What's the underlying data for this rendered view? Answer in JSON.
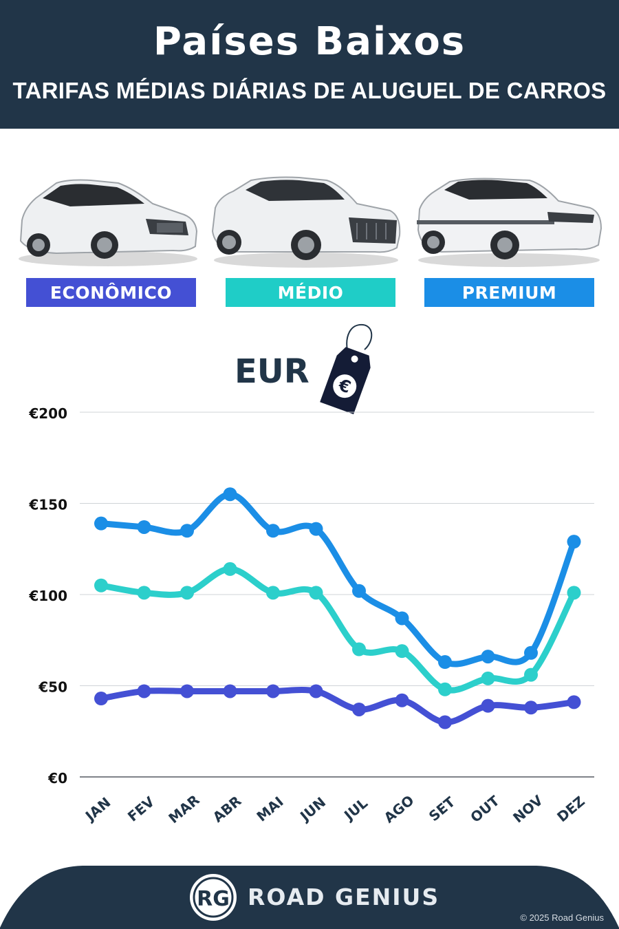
{
  "header": {
    "title": "Países Baixos",
    "subtitle": "TARIFAS MÉDIAS DIÁRIAS DE ALUGUEL DE CARROS"
  },
  "categories": [
    {
      "label": "ECONÔMICO",
      "color": "#4450d4"
    },
    {
      "label": "MÉDIO",
      "color": "#1fcdc7"
    },
    {
      "label": "PREMIUM",
      "color": "#1b8ee6"
    }
  ],
  "currency_label": "EUR",
  "tag_symbol": "€",
  "chart_data": {
    "type": "line",
    "categories": [
      "JAN",
      "FEV",
      "MAR",
      "ABR",
      "MAI",
      "JUN",
      "JUL",
      "AGO",
      "SET",
      "OUT",
      "NOV",
      "DEZ"
    ],
    "y_ticks": [
      "€0",
      "€50",
      "€100",
      "€150",
      "€200"
    ],
    "ylim": [
      0,
      200
    ],
    "grid": true,
    "series": [
      {
        "name": "PREMIUM",
        "color": "#1b8ee6",
        "values": [
          139,
          137,
          135,
          155,
          135,
          136,
          102,
          87,
          63,
          66,
          68,
          129
        ]
      },
      {
        "name": "MÉDIO",
        "color": "#2ccfcb",
        "values": [
          105,
          101,
          101,
          114,
          101,
          101,
          70,
          69,
          48,
          54,
          56,
          101
        ]
      },
      {
        "name": "ECONÔMICO",
        "color": "#4450d4",
        "values": [
          43,
          47,
          47,
          47,
          47,
          47,
          37,
          42,
          30,
          39,
          38,
          41
        ]
      }
    ]
  },
  "footer": {
    "logo_initials": "RG",
    "brand": "ROAD GENIUS",
    "copyright": "© 2025 Road Genius"
  }
}
